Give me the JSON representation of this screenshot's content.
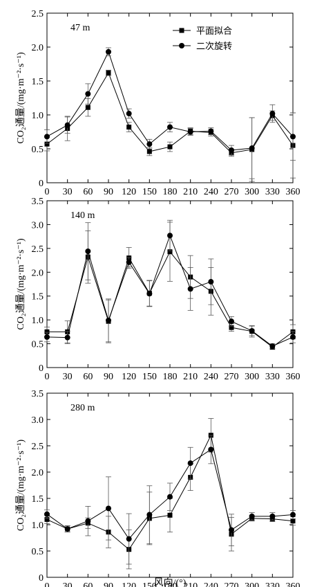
{
  "chart_data": [
    {
      "type": "line",
      "annotation": "47 m",
      "x": [
        0,
        30,
        60,
        90,
        120,
        150,
        180,
        210,
        240,
        270,
        300,
        330,
        360
      ],
      "xlim": [
        0,
        360
      ],
      "ylim": [
        0,
        2.5
      ],
      "yticks": [
        "0",
        "0.5",
        "1.0",
        "1.5",
        "2.0",
        "2.5"
      ],
      "ylabel": "CO₂通量/(mg·m⁻²·s⁻¹)",
      "legend_position": "top-center",
      "series": [
        {
          "name": "平面拟合",
          "marker": "square",
          "values": [
            0.57,
            0.8,
            1.11,
            1.62,
            0.82,
            0.46,
            0.53,
            0.76,
            0.74,
            0.44,
            0.49,
            0.99,
            0.55
          ],
          "errors": [
            0.1,
            0.18,
            0.13,
            0.04,
            0.07,
            0.06,
            0.07,
            0.05,
            0.05,
            0.05,
            0.47,
            0.07,
            0.48
          ]
        },
        {
          "name": "二次旋转",
          "marker": "circle",
          "values": [
            0.68,
            0.85,
            1.31,
            1.93,
            1.02,
            0.57,
            0.82,
            0.75,
            0.76,
            0.48,
            0.51,
            1.02,
            0.68
          ],
          "errors": [
            0.1,
            0.12,
            0.15,
            0.06,
            0.07,
            0.07,
            0.07,
            0.05,
            0.05,
            0.07,
            0.45,
            0.13,
            0.35
          ]
        }
      ]
    },
    {
      "type": "line",
      "annotation": "140 m",
      "x": [
        0,
        30,
        60,
        90,
        120,
        150,
        180,
        210,
        240,
        270,
        300,
        330,
        360
      ],
      "xlim": [
        0,
        360
      ],
      "ylim": [
        0,
        3.5
      ],
      "yticks": [
        "0",
        "0.5",
        "1.0",
        "1.5",
        "2.0",
        "2.5",
        "3.0",
        "3.5"
      ],
      "ylabel": "CO₂通量/(mg·m⁻²·s⁻¹)",
      "series": [
        {
          "name": "平面拟合",
          "marker": "square",
          "values": [
            0.75,
            0.75,
            2.32,
            0.97,
            2.3,
            1.56,
            2.43,
            1.9,
            1.6,
            0.84,
            0.76,
            0.43,
            0.75
          ],
          "errors": [
            0.1,
            0.23,
            0.55,
            0.45,
            0.22,
            0.27,
            0.62,
            0.45,
            0.5,
            0.08,
            0.12,
            0.05,
            0.15
          ]
        },
        {
          "name": "二次旋转",
          "marker": "circle",
          "values": [
            0.64,
            0.63,
            2.44,
            0.99,
            2.21,
            1.55,
            2.77,
            1.65,
            1.8,
            0.97,
            0.77,
            0.45,
            0.64
          ],
          "errors": [
            0.1,
            0.13,
            0.6,
            0.45,
            0.1,
            0.27,
            0.32,
            0.45,
            0.48,
            0.1,
            0.1,
            0.05,
            0.12
          ]
        }
      ]
    },
    {
      "type": "line",
      "annotation": "280 m",
      "x": [
        0,
        30,
        60,
        90,
        120,
        150,
        180,
        210,
        240,
        270,
        300,
        330,
        360
      ],
      "xlim": [
        0,
        360
      ],
      "ylim": [
        0,
        3.5
      ],
      "yticks": [
        "0",
        "0.5",
        "1.0",
        "1.5",
        "2.0",
        "2.5",
        "3.0",
        "3.5"
      ],
      "ylabel": "CO₂通量/(mg·m⁻²·s⁻¹)",
      "xlabel": "风向/(°)",
      "series": [
        {
          "name": "平面拟合",
          "marker": "square",
          "values": [
            1.1,
            0.92,
            1.03,
            0.86,
            0.53,
            1.12,
            1.18,
            1.9,
            2.7,
            0.82,
            1.12,
            1.11,
            1.07
          ],
          "errors": [
            0.08,
            0.06,
            0.1,
            0.3,
            0.37,
            0.5,
            0.32,
            0.25,
            0.32,
            0.32,
            0.05,
            0.05,
            0.08
          ]
        },
        {
          "name": "二次旋转",
          "marker": "circle",
          "values": [
            1.2,
            0.92,
            1.07,
            1.31,
            0.73,
            1.19,
            1.53,
            2.17,
            2.43,
            0.9,
            1.16,
            1.16,
            1.19
          ],
          "errors": [
            0.08,
            0.06,
            0.28,
            0.6,
            0.48,
            0.55,
            0.26,
            0.3,
            0.27,
            0.3,
            0.07,
            0.07,
            0.08
          ]
        }
      ]
    }
  ]
}
